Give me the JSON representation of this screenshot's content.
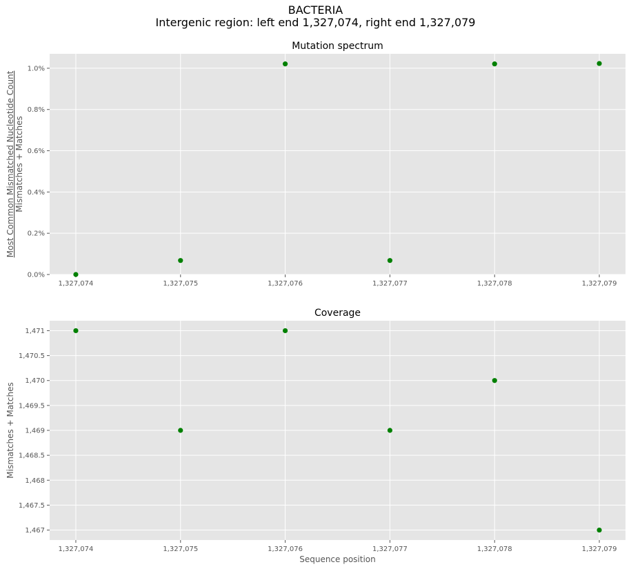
{
  "suptitle": {
    "line1": "BACTERIA",
    "line2": "Intergenic region: left end 1,327,074, right end 1,327,079"
  },
  "chart_data": [
    {
      "type": "scatter",
      "title": "Mutation spectrum",
      "xlabel": "",
      "ylabel_numerator": "Most Common Mismatched Nucleotide Count",
      "ylabel_denominator": "Mismatches + Matches",
      "x": [
        1327074,
        1327075,
        1327076,
        1327077,
        1327078,
        1327079
      ],
      "y": [
        0.0,
        0.068,
        1.021,
        0.068,
        1.021,
        1.023
      ],
      "y_unit": "%",
      "xticks": [
        "1,327,074",
        "1,327,075",
        "1,327,076",
        "1,327,077",
        "1,327,078",
        "1,327,079"
      ],
      "yticks": [
        "0.0%",
        "0.2%",
        "0.4%",
        "0.6%",
        "0.8%",
        "1.0%"
      ],
      "ytick_values": [
        0.0,
        0.2,
        0.4,
        0.6,
        0.8,
        1.0
      ],
      "xlim": [
        1327073.75,
        1327079.25
      ],
      "ylim": [
        0.0,
        1.07
      ],
      "grid": true,
      "marker_color": "#008000",
      "background_color": "#e5e5e5"
    },
    {
      "type": "scatter",
      "title": "Coverage",
      "xlabel": "Sequence position",
      "ylabel": "Mismatches + Matches",
      "x": [
        1327074,
        1327075,
        1327076,
        1327077,
        1327078,
        1327079
      ],
      "y": [
        1471,
        1469,
        1471,
        1469,
        1470,
        1467
      ],
      "xticks": [
        "1,327,074",
        "1,327,075",
        "1,327,076",
        "1,327,077",
        "1,327,078",
        "1,327,079"
      ],
      "yticks": [
        "1,467",
        "1,467.5",
        "1,468",
        "1,468.5",
        "1,469",
        "1,469.5",
        "1,470",
        "1,470.5",
        "1,471"
      ],
      "ytick_values": [
        1467,
        1467.5,
        1468,
        1468.5,
        1469,
        1469.5,
        1470,
        1470.5,
        1471
      ],
      "xlim": [
        1327073.75,
        1327079.25
      ],
      "ylim": [
        1466.8,
        1471.2
      ],
      "grid": true,
      "marker_color": "#008000",
      "background_color": "#e5e5e5"
    }
  ]
}
